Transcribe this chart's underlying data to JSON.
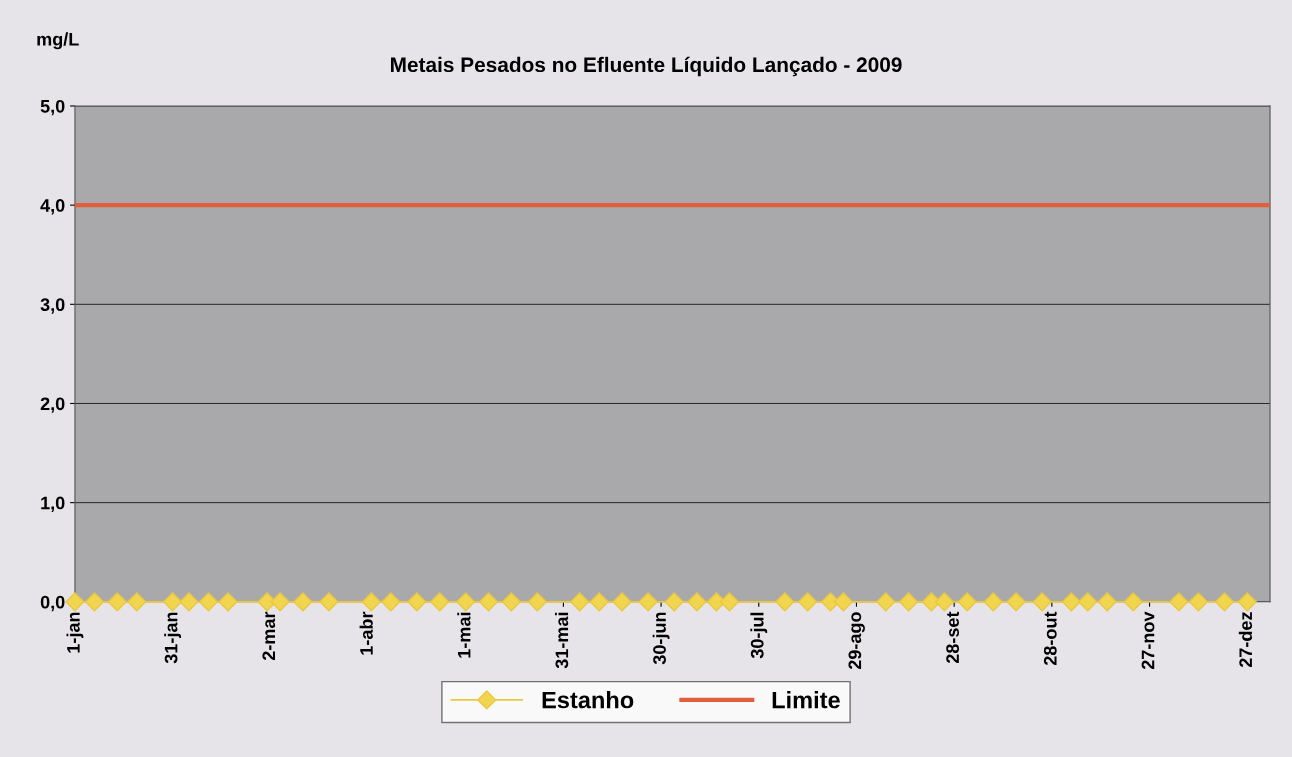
{
  "chart_data": {
    "type": "line",
    "title": "Metais Pesados no Efluente Líquido Lançado - 2009",
    "ylabel": "mg/L",
    "x": [
      "2009-01-01",
      "2009-01-07",
      "2009-01-14",
      "2009-01-20",
      "2009-01-31",
      "2009-02-05",
      "2009-02-11",
      "2009-02-17",
      "2009-03-01",
      "2009-03-05",
      "2009-03-12",
      "2009-03-20",
      "2009-04-02",
      "2009-04-08",
      "2009-04-16",
      "2009-04-23",
      "2009-05-01",
      "2009-05-08",
      "2009-05-15",
      "2009-05-23",
      "2009-06-05",
      "2009-06-11",
      "2009-06-18",
      "2009-06-26",
      "2009-07-04",
      "2009-07-11",
      "2009-07-17",
      "2009-07-21",
      "2009-08-07",
      "2009-08-14",
      "2009-08-21",
      "2009-08-25",
      "2009-09-07",
      "2009-09-14",
      "2009-09-21",
      "2009-09-25",
      "2009-10-02",
      "2009-10-10",
      "2009-10-17",
      "2009-10-25",
      "2009-11-03",
      "2009-11-08",
      "2009-11-14",
      "2009-11-22",
      "2009-12-06",
      "2009-12-12",
      "2009-12-20",
      "2009-12-27"
    ],
    "series": [
      {
        "name": "Estanho",
        "color": "#e8c840",
        "values": [
          0,
          0,
          0,
          0,
          0,
          0,
          0,
          0,
          0,
          0,
          0,
          0,
          0,
          0,
          0,
          0,
          0,
          0,
          0,
          0,
          0,
          0,
          0,
          0,
          0,
          0,
          0,
          0,
          0,
          0,
          0,
          0,
          0,
          0,
          0,
          0,
          0,
          0,
          0,
          0,
          0,
          0,
          0,
          0,
          0,
          0,
          0,
          0
        ]
      }
    ],
    "marker": "diamond",
    "ref_lines": [
      {
        "axis": "y",
        "value": 4.0,
        "label": "Limite",
        "color": "#e0603c"
      }
    ],
    "xlim": [
      "2009-01-01",
      "2010-01-03"
    ],
    "xticks": [
      {
        "value": "2009-01-01",
        "label": "1-jan"
      },
      {
        "value": "2009-01-31",
        "label": "31-jan"
      },
      {
        "value": "2009-03-02",
        "label": "2-mar"
      },
      {
        "value": "2009-04-01",
        "label": "1-abr"
      },
      {
        "value": "2009-05-01",
        "label": "1-mai"
      },
      {
        "value": "2009-05-31",
        "label": "31-mai"
      },
      {
        "value": "2009-06-30",
        "label": "30-jun"
      },
      {
        "value": "2009-07-30",
        "label": "30-jul"
      },
      {
        "value": "2009-08-29",
        "label": "29-ago"
      },
      {
        "value": "2009-09-28",
        "label": "28-set"
      },
      {
        "value": "2009-10-28",
        "label": "28-out"
      },
      {
        "value": "2009-11-27",
        "label": "27-nov"
      },
      {
        "value": "2009-12-27",
        "label": "27-dez"
      }
    ],
    "ylim": [
      0,
      5
    ],
    "yticks": [
      {
        "value": 0,
        "label": "0,0"
      },
      {
        "value": 1,
        "label": "1,0"
      },
      {
        "value": 2,
        "label": "2,0"
      },
      {
        "value": 3,
        "label": "3,0"
      },
      {
        "value": 4,
        "label": "4,0"
      },
      {
        "value": 5,
        "label": "5,0"
      }
    ],
    "grid": "y",
    "legend": "bottom"
  }
}
